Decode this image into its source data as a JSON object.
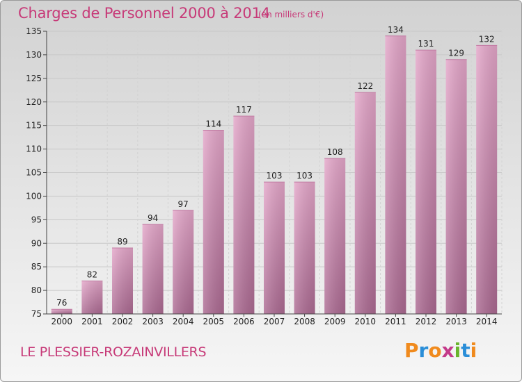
{
  "header": {
    "title": "Charges de Personnel 2000 à 2014",
    "subtitle": "(en milliers d'€)"
  },
  "footer": {
    "commune": "LE PLESSIER-ROZAINVILLERS",
    "logo_text": "Proxiti",
    "logo_colors": [
      "#f08a1d",
      "#2a8ed8",
      "#f08a1d",
      "#c43a8a",
      "#6ab42d",
      "#2a8ed8",
      "#f08a1d"
    ]
  },
  "chart_data": {
    "type": "bar",
    "categories": [
      "2000",
      "2001",
      "2002",
      "2003",
      "2004",
      "2005",
      "2006",
      "2007",
      "2008",
      "2009",
      "2010",
      "2011",
      "2012",
      "2013",
      "2014"
    ],
    "values": [
      76,
      82,
      89,
      94,
      97,
      114,
      117,
      103,
      103,
      108,
      122,
      134,
      131,
      129,
      132
    ],
    "ylim": [
      75,
      135
    ],
    "yticks": [
      75,
      80,
      85,
      90,
      95,
      100,
      105,
      110,
      115,
      120,
      125,
      130,
      135
    ],
    "bar_color": "#d88bb5",
    "grid": true
  }
}
